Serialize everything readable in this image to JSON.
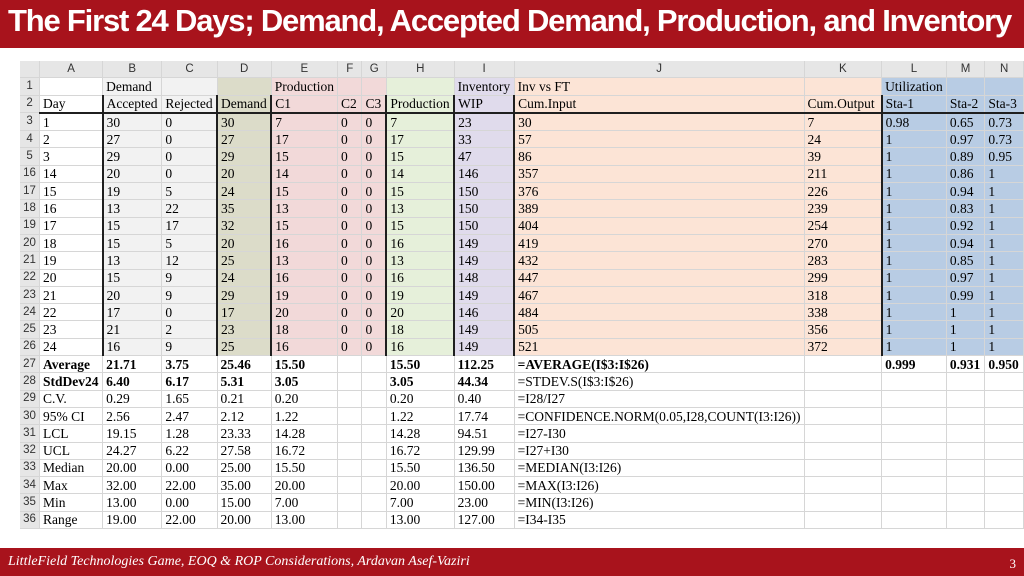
{
  "title": "The First 24 Days; Demand, Accepted Demand, Production, and Inventory",
  "footer": {
    "text": "LittleField Technologies Game, EOQ & ROP Considerations, Ardavan Asef-Vaziri",
    "page": "3"
  },
  "column_headers": [
    "A",
    "B",
    "C",
    "D",
    "E",
    "F",
    "G",
    "H",
    "I",
    "J",
    "K",
    "L",
    "M",
    "N"
  ],
  "rows": [
    {
      "n": "1",
      "c": [
        "",
        "Demand",
        "",
        "",
        "Production",
        "",
        "",
        "",
        "Inventory",
        "Inv vs FT",
        "",
        "Utilization",
        "",
        ""
      ]
    },
    {
      "n": "2",
      "c": [
        "Day",
        "Accepted",
        "Rejected",
        "Demand",
        "C1",
        "C2",
        "C3",
        "Production",
        "WIP",
        "Cum.Input",
        "Cum.Output",
        "Sta-1",
        "Sta-2",
        "Sta-3"
      ]
    },
    {
      "n": "3",
      "c": [
        "1",
        "30",
        "0",
        "30",
        "7",
        "0",
        "0",
        "7",
        "23",
        "30",
        "7",
        "0.98",
        "0.65",
        "0.73"
      ]
    },
    {
      "n": "4",
      "c": [
        "2",
        "27",
        "0",
        "27",
        "17",
        "0",
        "0",
        "17",
        "33",
        "57",
        "24",
        "1",
        "0.97",
        "0.73"
      ]
    },
    {
      "n": "5",
      "c": [
        "3",
        "29",
        "0",
        "29",
        "15",
        "0",
        "0",
        "15",
        "47",
        "86",
        "39",
        "1",
        "0.89",
        "0.95"
      ]
    },
    {
      "n": "16",
      "c": [
        "14",
        "20",
        "0",
        "20",
        "14",
        "0",
        "0",
        "14",
        "146",
        "357",
        "211",
        "1",
        "0.86",
        "1"
      ]
    },
    {
      "n": "17",
      "c": [
        "15",
        "19",
        "5",
        "24",
        "15",
        "0",
        "0",
        "15",
        "150",
        "376",
        "226",
        "1",
        "0.94",
        "1"
      ]
    },
    {
      "n": "18",
      "c": [
        "16",
        "13",
        "22",
        "35",
        "13",
        "0",
        "0",
        "13",
        "150",
        "389",
        "239",
        "1",
        "0.83",
        "1"
      ]
    },
    {
      "n": "19",
      "c": [
        "17",
        "15",
        "17",
        "32",
        "15",
        "0",
        "0",
        "15",
        "150",
        "404",
        "254",
        "1",
        "0.92",
        "1"
      ]
    },
    {
      "n": "20",
      "c": [
        "18",
        "15",
        "5",
        "20",
        "16",
        "0",
        "0",
        "16",
        "149",
        "419",
        "270",
        "1",
        "0.94",
        "1"
      ]
    },
    {
      "n": "21",
      "c": [
        "19",
        "13",
        "12",
        "25",
        "13",
        "0",
        "0",
        "13",
        "149",
        "432",
        "283",
        "1",
        "0.85",
        "1"
      ]
    },
    {
      "n": "22",
      "c": [
        "20",
        "15",
        "9",
        "24",
        "16",
        "0",
        "0",
        "16",
        "148",
        "447",
        "299",
        "1",
        "0.97",
        "1"
      ]
    },
    {
      "n": "23",
      "c": [
        "21",
        "20",
        "9",
        "29",
        "19",
        "0",
        "0",
        "19",
        "149",
        "467",
        "318",
        "1",
        "0.99",
        "1"
      ]
    },
    {
      "n": "24",
      "c": [
        "22",
        "17",
        "0",
        "17",
        "20",
        "0",
        "0",
        "20",
        "146",
        "484",
        "338",
        "1",
        "1",
        "1"
      ]
    },
    {
      "n": "25",
      "c": [
        "23",
        "21",
        "2",
        "23",
        "18",
        "0",
        "0",
        "18",
        "149",
        "505",
        "356",
        "1",
        "1",
        "1"
      ]
    },
    {
      "n": "26",
      "c": [
        "24",
        "16",
        "9",
        "25",
        "16",
        "0",
        "0",
        "16",
        "149",
        "521",
        "372",
        "1",
        "1",
        "1"
      ]
    },
    {
      "n": "27",
      "c": [
        "Average",
        "21.71",
        "3.75",
        "25.46",
        "15.50",
        "",
        "",
        "15.50",
        "112.25",
        "=AVERAGE(I$3:I$26)",
        "",
        "0.999",
        "0.931",
        "0.950"
      ]
    },
    {
      "n": "28",
      "c": [
        "StdDev24",
        "6.40",
        "6.17",
        "5.31",
        "3.05",
        "",
        "",
        "3.05",
        "44.34",
        "=STDEV.S(I$3:I$26)",
        "",
        "",
        "",
        ""
      ]
    },
    {
      "n": "29",
      "c": [
        "C.V.",
        "0.29",
        "1.65",
        "0.21",
        "0.20",
        "",
        "",
        "0.20",
        "0.40",
        "=I28/I27",
        "",
        "",
        "",
        ""
      ]
    },
    {
      "n": "30",
      "c": [
        "95% CI",
        "2.56",
        "2.47",
        "2.12",
        "1.22",
        "",
        "",
        "1.22",
        "17.74",
        "=CONFIDENCE.NORM(0.05,I28,COUNT(I3:I26))",
        "",
        "",
        "",
        ""
      ]
    },
    {
      "n": "31",
      "c": [
        "LCL",
        "19.15",
        "1.28",
        "23.33",
        "14.28",
        "",
        "",
        "14.28",
        "94.51",
        "=I27-I30",
        "",
        "",
        "",
        ""
      ]
    },
    {
      "n": "32",
      "c": [
        "UCL",
        "24.27",
        "6.22",
        "27.58",
        "16.72",
        "",
        "",
        "16.72",
        "129.99",
        "=I27+I30",
        "",
        "",
        "",
        ""
      ]
    },
    {
      "n": "33",
      "c": [
        "Median",
        "20.00",
        "0.00",
        "25.00",
        "15.50",
        "",
        "",
        "15.50",
        "136.50",
        "=MEDIAN(I3:I26)",
        "",
        "",
        "",
        ""
      ]
    },
    {
      "n": "34",
      "c": [
        "Max",
        "32.00",
        "22.00",
        "35.00",
        "20.00",
        "",
        "",
        "20.00",
        "150.00",
        "=MAX(I3:I26)",
        "",
        "",
        "",
        ""
      ]
    },
    {
      "n": "35",
      "c": [
        "Min",
        "13.00",
        "0.00",
        "15.00",
        "7.00",
        "",
        "",
        "7.00",
        "23.00",
        "=MIN(I3:I26)",
        "",
        "",
        "",
        ""
      ]
    },
    {
      "n": "36",
      "c": [
        "Range",
        "19.00",
        "22.00",
        "20.00",
        "13.00",
        "",
        "",
        "13.00",
        "127.00",
        "=I34-I35",
        "",
        "",
        "",
        ""
      ]
    }
  ]
}
